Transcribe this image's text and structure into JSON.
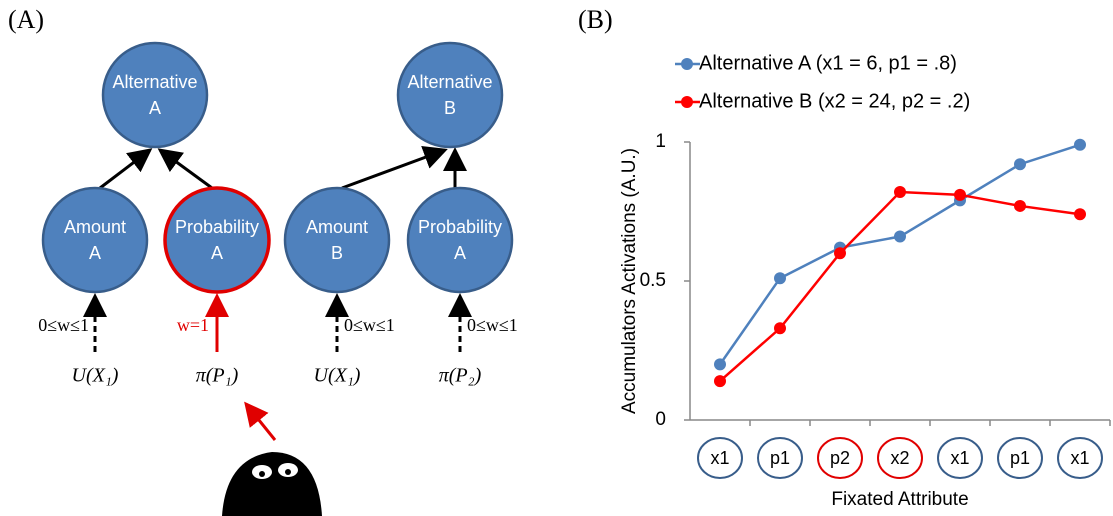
{
  "panel_a": {
    "panel_label": "(A)",
    "nodes": [
      {
        "label": [
          "Alternative",
          "A"
        ],
        "highlight": false
      },
      {
        "label": [
          "Alternative",
          "B"
        ],
        "highlight": false
      },
      {
        "label": [
          "Amount",
          "A"
        ],
        "highlight": false
      },
      {
        "label": [
          "Probability",
          "A"
        ],
        "highlight": true
      },
      {
        "label": [
          "Amount",
          "B"
        ],
        "highlight": false
      },
      {
        "label": [
          "Probability",
          "A"
        ],
        "highlight": false
      }
    ],
    "weights": [
      "0≤w≤1",
      "w=1",
      "0≤w≤1",
      "0≤w≤1"
    ],
    "inputs": [
      "U(X₁)",
      "π(P₁)",
      "U(X₁)",
      "π(P₂)"
    ]
  },
  "chart_data": {
    "type": "line",
    "panel_label": "(B)",
    "y_label": "Accumulators  Activations  (A.U.)",
    "x_label": "Fixated Attribute",
    "categories": [
      "x1",
      "p1",
      "p2",
      "x2",
      "x1",
      "p1",
      "x1"
    ],
    "category_colors": [
      "#385d8a",
      "#385d8a",
      "#e00000",
      "#e00000",
      "#385d8a",
      "#385d8a",
      "#385d8a"
    ],
    "series": [
      {
        "name": "Alternative A (x1 = 6, p1 = .8)",
        "color": "#4f81bd",
        "values": [
          0.2,
          0.51,
          0.62,
          0.66,
          0.79,
          0.92,
          0.99
        ]
      },
      {
        "name": "Alternative B (x2 = 24, p2 = .2)",
        "color": "#ff0000",
        "values": [
          0.14,
          0.33,
          0.6,
          0.82,
          0.81,
          0.77,
          0.74
        ]
      }
    ],
    "ylim": [
      0,
      1
    ],
    "yticks": [
      0,
      0.5,
      1
    ],
    "grid": false,
    "legend": "top"
  }
}
